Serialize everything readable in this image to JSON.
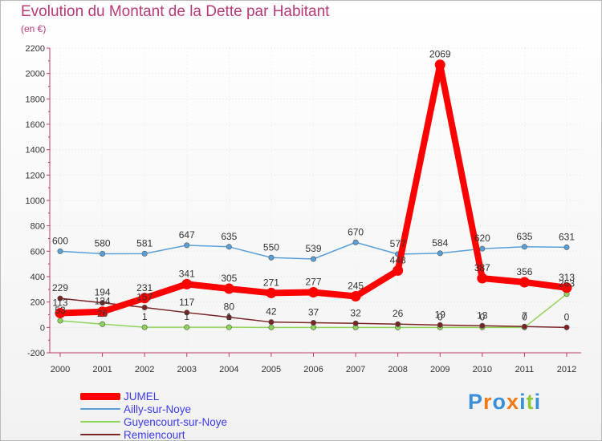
{
  "title": "Evolution du Montant de la Dette par Habitant",
  "subtitle": "(en €)",
  "logo_text": "Proxiti",
  "chart_data": {
    "type": "line",
    "title": "Evolution du Montant de la Dette par Habitant",
    "ylabel": "(en €)",
    "xlabel": "",
    "categories": [
      "2000",
      "2001",
      "2002",
      "2003",
      "2004",
      "2005",
      "2006",
      "2007",
      "2008",
      "2009",
      "2010",
      "2011",
      "2012"
    ],
    "ylim": [
      -200,
      2200
    ],
    "yticks": [
      -200,
      0,
      200,
      400,
      600,
      800,
      1000,
      1200,
      1400,
      1600,
      1800,
      2000,
      2200
    ],
    "legend_position": "bottom-left",
    "series": [
      {
        "name": "JUMEL",
        "color": "#ff0000",
        "values": [
          113,
          124,
          231,
          341,
          305,
          271,
          277,
          245,
          448,
          2069,
          387,
          356,
          313
        ],
        "labels": [
          "113",
          "124",
          "231",
          "341",
          "305",
          "271",
          "277",
          "245",
          "448",
          "2069",
          "387",
          "356",
          "313"
        ]
      },
      {
        "name": "Ailly-sur-Noye",
        "color": "#5aa0d8",
        "values": [
          600,
          580,
          581,
          647,
          635,
          550,
          539,
          670,
          577,
          584,
          620,
          635,
          631
        ],
        "labels": [
          "600",
          "580",
          "581",
          "647",
          "635",
          "550",
          "539",
          "670",
          "577",
          "584",
          "620",
          "635",
          "631"
        ]
      },
      {
        "name": "Guyencourt-sur-Noye",
        "color": "#8fd45a",
        "values": [
          53,
          26,
          1,
          1,
          1,
          0,
          0,
          0,
          0,
          0,
          0,
          0,
          263
        ],
        "labels": [
          "53",
          "26",
          "1",
          "1",
          "1",
          "",
          "",
          "",
          "",
          "0",
          "0",
          "0",
          "263"
        ]
      },
      {
        "name": "Remiencourt",
        "color": "#7a2424",
        "values": [
          229,
          194,
          157,
          117,
          80,
          42,
          37,
          32,
          26,
          19,
          13,
          7,
          0
        ],
        "labels": [
          "229",
          "194",
          "157",
          "117",
          "80",
          "42",
          "37",
          "32",
          "26",
          "19",
          "13",
          "7",
          "0"
        ]
      }
    ]
  }
}
